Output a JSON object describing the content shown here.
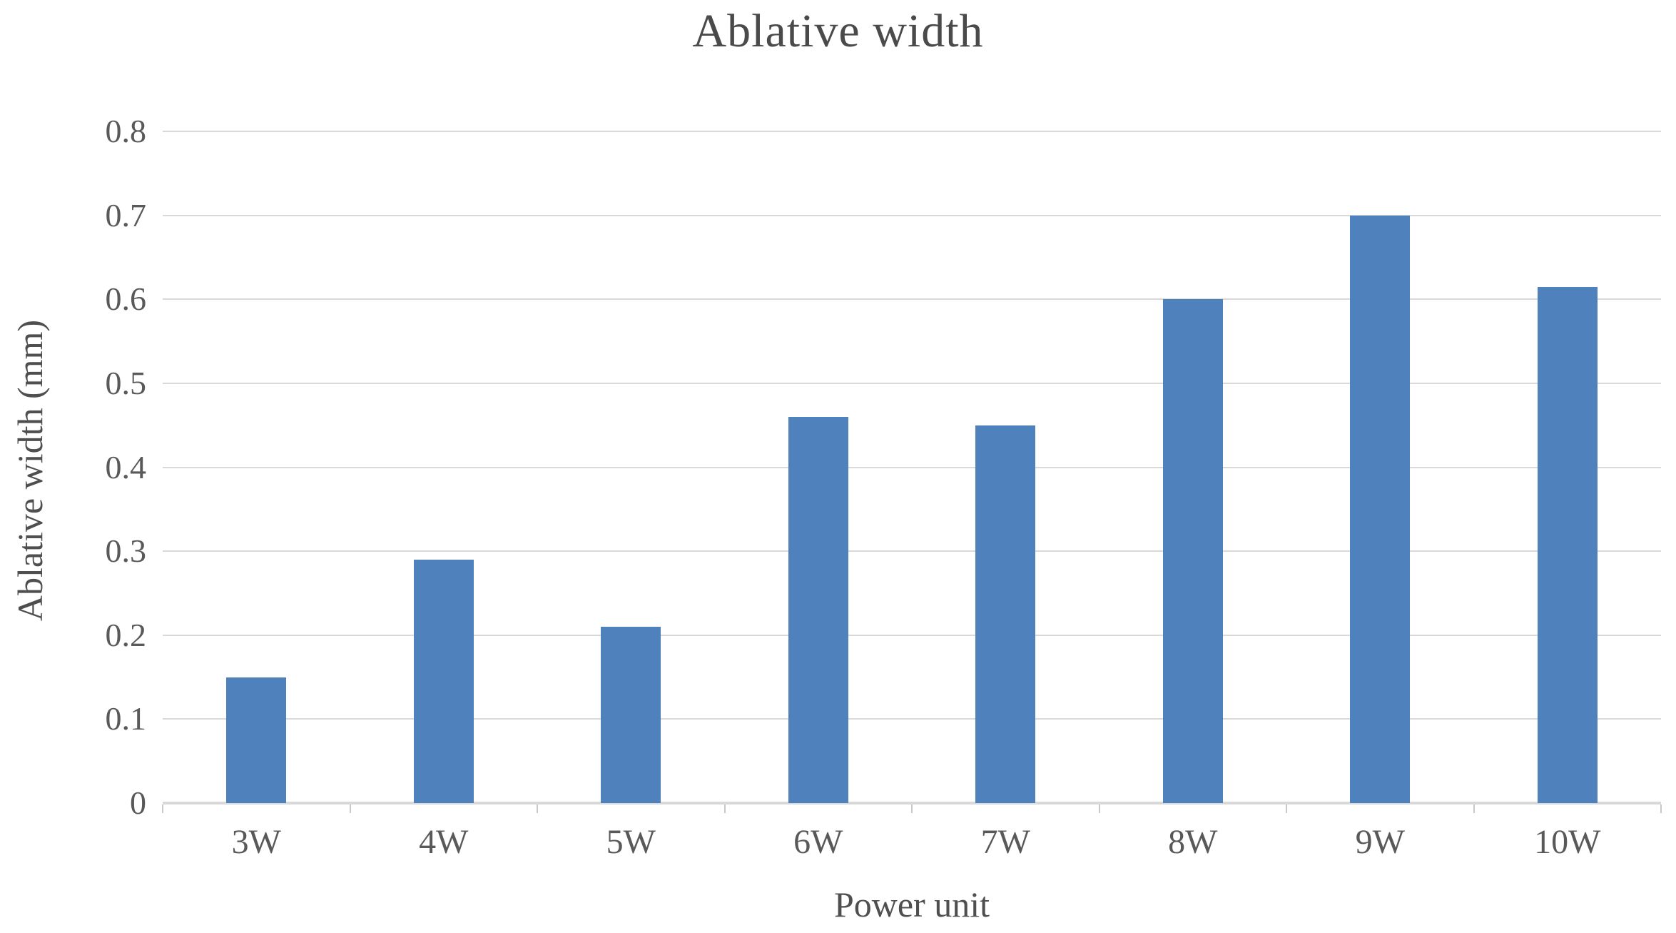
{
  "chart_data": {
    "type": "bar",
    "title": "Ablative width",
    "xlabel": "Power unit",
    "ylabel": "Ablative width (mm)",
    "categories": [
      "3W",
      "4W",
      "5W",
      "6W",
      "7W",
      "8W",
      "9W",
      "10W"
    ],
    "values": [
      0.15,
      0.29,
      0.21,
      0.46,
      0.45,
      0.6,
      0.7,
      0.615
    ],
    "ylim": [
      0,
      0.8
    ],
    "ytick_interval": 0.1,
    "ytick_labels": [
      "0",
      "0.1",
      "0.2",
      "0.3",
      "0.4",
      "0.5",
      "0.6",
      "0.7",
      "0.8"
    ],
    "grid": true,
    "legend": false,
    "bar_color": "#4F81BD",
    "gridline_color": "#D9D9D9",
    "axis_line_color": "#D9D9D9",
    "tick_label_color": "#595959",
    "title_color": "#4A4A4A"
  }
}
